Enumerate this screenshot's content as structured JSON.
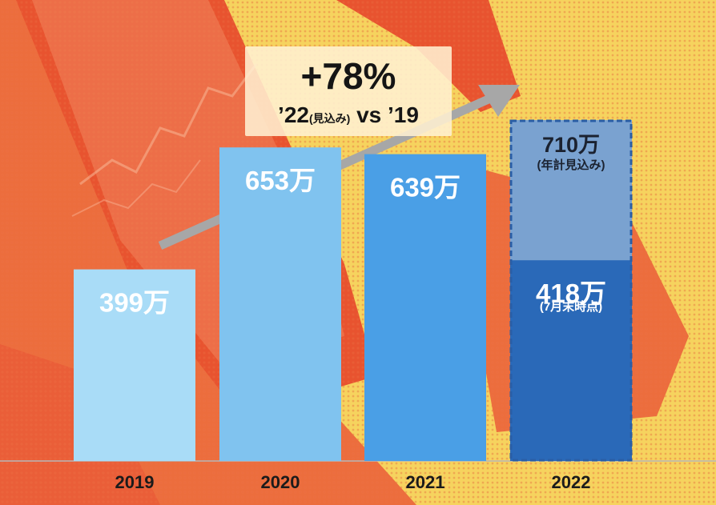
{
  "chart_data": {
    "type": "bar",
    "categories": [
      "2019",
      "2020",
      "2021",
      "2022"
    ],
    "values": [
      399,
      653,
      639,
      418
    ],
    "projected": {
      "category": "2022",
      "value": 710
    },
    "value_labels": [
      "399万",
      "653万",
      "639万",
      "418万"
    ],
    "projected_label": "710万",
    "projected_note": "(年計見込み)",
    "partial_note": "(7月末時点)",
    "callout": {
      "headline": "+78%",
      "comparison_main": "’22",
      "comparison_sub": "(見込み)",
      "comparison_tail": " vs ’19"
    },
    "ylim": [
      0,
      900
    ],
    "grid": false,
    "colors": {
      "bar_2019": "#a9dcf7",
      "bar_2020": "#80c3ef",
      "bar_2021": "#4a9fe6",
      "bar_2022": "#2a69b8",
      "bar_2022_projected": "#7aa2d0",
      "projected_border": "#2a5ea6",
      "arrow": "#a7a7a7",
      "background_yellow": "#f6d35e",
      "background_red": "#ea5a37"
    }
  }
}
